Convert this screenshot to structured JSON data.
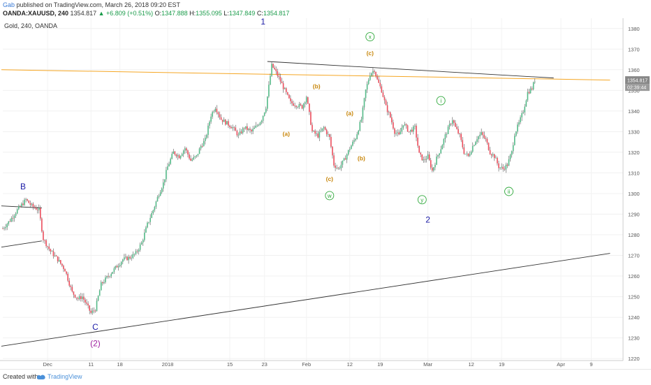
{
  "header": {
    "author": "Gab",
    "published_text": "published on TradingView.com, March 26, 2018 09:20 EST",
    "symbol": "OANDA:XAUUSD, 240",
    "last": "1354.817",
    "change": "▲ +6.809 (+0.51%)",
    "o_label": "O:",
    "o_value": "1347.888",
    "h_label": "H:",
    "h_value": "1355.095",
    "l_label": "L:",
    "l_value": "1347.849",
    "c_label": "C:",
    "c_value": "1354.817"
  },
  "footer": {
    "created_with": "Created with",
    "brand": "TradingView"
  },
  "chart_data": {
    "type": "candlestick",
    "title": "Gold, 240, OANDA",
    "y_range": [
      1217,
      1385
    ],
    "y_ticks": [
      1220,
      1230,
      1240,
      1250,
      1260,
      1270,
      1280,
      1290,
      1300,
      1310,
      1320,
      1330,
      1340,
      1350,
      1360,
      1370,
      1380
    ],
    "x_ticks": [
      {
        "label": "Dec",
        "bar": 31
      },
      {
        "label": "11",
        "bar": 61
      },
      {
        "label": "18",
        "bar": 81
      },
      {
        "label": "2018",
        "bar": 114
      },
      {
        "label": "15",
        "bar": 157
      },
      {
        "label": "23",
        "bar": 181
      },
      {
        "label": "Feb",
        "bar": 210
      },
      {
        "label": "12",
        "bar": 240
      },
      {
        "label": "19",
        "bar": 261
      },
      {
        "label": "Mar",
        "bar": 294
      },
      {
        "label": "12",
        "bar": 324
      },
      {
        "label": "19",
        "bar": 345
      },
      {
        "label": "Apr",
        "bar": 386
      },
      {
        "label": "9",
        "bar": 407
      }
    ],
    "bar_count": 368,
    "price_path": [
      [
        0,
        1283
      ],
      [
        5,
        1287
      ],
      [
        10,
        1292
      ],
      [
        16,
        1297
      ],
      [
        20,
        1294
      ],
      [
        25,
        1292
      ],
      [
        28,
        1278
      ],
      [
        33,
        1272
      ],
      [
        38,
        1268
      ],
      [
        43,
        1263
      ],
      [
        48,
        1252
      ],
      [
        52,
        1249
      ],
      [
        55,
        1250
      ],
      [
        58,
        1246
      ],
      [
        61,
        1242
      ],
      [
        64,
        1244
      ],
      [
        68,
        1256
      ],
      [
        73,
        1260
      ],
      [
        78,
        1264
      ],
      [
        83,
        1268
      ],
      [
        88,
        1269
      ],
      [
        92,
        1271
      ],
      [
        96,
        1276
      ],
      [
        100,
        1285
      ],
      [
        104,
        1292
      ],
      [
        108,
        1300
      ],
      [
        111,
        1305
      ],
      [
        114,
        1313
      ],
      [
        118,
        1320
      ],
      [
        122,
        1318
      ],
      [
        126,
        1322
      ],
      [
        130,
        1316
      ],
      [
        134,
        1318
      ],
      [
        137,
        1323
      ],
      [
        140,
        1326
      ],
      [
        144,
        1338
      ],
      [
        147,
        1342
      ],
      [
        151,
        1336
      ],
      [
        155,
        1334
      ],
      [
        159,
        1332
      ],
      [
        163,
        1328
      ],
      [
        167,
        1332
      ],
      [
        172,
        1330
      ],
      [
        176,
        1333
      ],
      [
        179,
        1336
      ],
      [
        182,
        1342
      ],
      [
        185,
        1357
      ],
      [
        186,
        1362
      ],
      [
        188,
        1360
      ],
      [
        191,
        1356
      ],
      [
        195,
        1350
      ],
      [
        199,
        1344
      ],
      [
        203,
        1343
      ],
      [
        207,
        1342
      ],
      [
        210,
        1347
      ],
      [
        214,
        1330
      ],
      [
        218,
        1328
      ],
      [
        222,
        1332
      ],
      [
        226,
        1327
      ],
      [
        229,
        1314
      ],
      [
        232,
        1312
      ],
      [
        236,
        1316
      ],
      [
        240,
        1322
      ],
      [
        244,
        1327
      ],
      [
        248,
        1336
      ],
      [
        251,
        1350
      ],
      [
        254,
        1358
      ],
      [
        257,
        1360
      ],
      [
        259,
        1355
      ],
      [
        262,
        1350
      ],
      [
        265,
        1342
      ],
      [
        268,
        1337
      ],
      [
        271,
        1330
      ],
      [
        274,
        1328
      ],
      [
        277,
        1334
      ],
      [
        281,
        1330
      ],
      [
        285,
        1332
      ],
      [
        288,
        1319
      ],
      [
        291,
        1316
      ],
      [
        294,
        1318
      ],
      [
        297,
        1311
      ],
      [
        300,
        1317
      ],
      [
        303,
        1322
      ],
      [
        306,
        1328
      ],
      [
        309,
        1333
      ],
      [
        311,
        1336
      ],
      [
        313,
        1332
      ],
      [
        316,
        1328
      ],
      [
        319,
        1320
      ],
      [
        322,
        1318
      ],
      [
        325,
        1323
      ],
      [
        328,
        1327
      ],
      [
        331,
        1329
      ],
      [
        334,
        1326
      ],
      [
        337,
        1320
      ],
      [
        340,
        1318
      ],
      [
        343,
        1313
      ],
      [
        346,
        1312
      ],
      [
        349,
        1314
      ],
      [
        352,
        1320
      ],
      [
        354,
        1329
      ],
      [
        357,
        1334
      ],
      [
        360,
        1340
      ],
      [
        363,
        1349
      ],
      [
        366,
        1351
      ],
      [
        368,
        1355
      ]
    ],
    "trendlines": [
      {
        "from": [
          -1,
          1226
        ],
        "to": [
          420,
          1271
        ],
        "color": "#333333"
      },
      {
        "from": [
          183,
          1364
        ],
        "to": [
          381,
          1356
        ],
        "color": "#333333"
      },
      {
        "from": [
          -1,
          1294
        ],
        "to": [
          27,
          1293
        ],
        "color": "#333333"
      },
      {
        "from": [
          -1,
          1274
        ],
        "to": [
          27,
          1277
        ],
        "color": "#333333"
      }
    ],
    "horizontal_line": {
      "from": [
        -1,
        1360
      ],
      "to": [
        420,
        1355
      ],
      "color": "#f5a623"
    },
    "price_label": "1354.817",
    "countdown_label": "02:39:44",
    "wave_labels": [
      {
        "text": "B",
        "bar": 14,
        "price": 1302,
        "color": "#1a1aa6"
      },
      {
        "text": "C",
        "bar": 64,
        "price": 1234,
        "color": "#1a1aa6"
      },
      {
        "text": "(2)",
        "bar": 64,
        "price": 1226,
        "color": "#a020a0"
      },
      {
        "text": "1",
        "bar": 180,
        "price": 1382,
        "color": "#1a1aa6"
      },
      {
        "text": "2",
        "bar": 294,
        "price": 1286,
        "color": "#1a1aa6"
      },
      {
        "text": "(a)",
        "bar": 196,
        "price": 1328,
        "color": "#c8860a"
      },
      {
        "text": "(b)",
        "bar": 217,
        "price": 1351,
        "color": "#c8860a"
      },
      {
        "text": "(c)",
        "bar": 226,
        "price": 1306,
        "color": "#c8860a"
      },
      {
        "text": "(a)",
        "bar": 240,
        "price": 1338,
        "color": "#c8860a"
      },
      {
        "text": "(b)",
        "bar": 248,
        "price": 1316,
        "color": "#c8860a"
      },
      {
        "text": "(c)",
        "bar": 254,
        "price": 1367,
        "color": "#c8860a"
      }
    ],
    "circle_labels": [
      {
        "text": "w",
        "bar": 226,
        "price": 1299
      },
      {
        "text": "x",
        "bar": 254,
        "price": 1376
      },
      {
        "text": "y",
        "bar": 290,
        "price": 1297
      },
      {
        "text": "i",
        "bar": 303,
        "price": 1345
      },
      {
        "text": "ii",
        "bar": 350,
        "price": 1301
      }
    ],
    "colors": {
      "up": "#53b987",
      "down": "#eb4d5c",
      "wick": "#555555",
      "axis_text": "#555555",
      "circle": "#2ea83a",
      "price_badge": "#888888"
    }
  }
}
